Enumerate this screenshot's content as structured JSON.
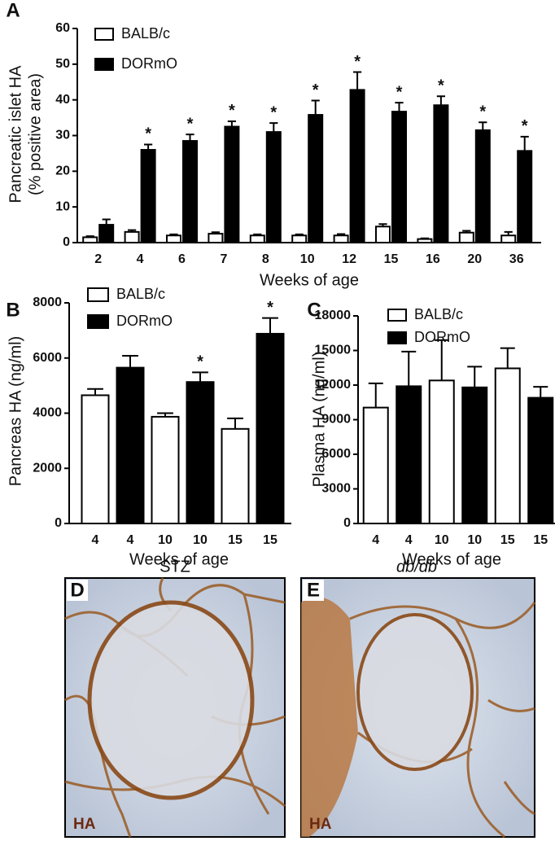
{
  "chart_data": [
    {
      "type": "bar",
      "panel": "A",
      "ylabel": [
        "Pancreatic islet HA",
        "(% positive area)"
      ],
      "xlabel": "Weeks of age",
      "categories": [
        "2",
        "4",
        "6",
        "7",
        "8",
        "10",
        "12",
        "15",
        "16",
        "20",
        "36"
      ],
      "series": [
        {
          "name": "BALB/c",
          "color": "#ffffff",
          "values": [
            1.5,
            3,
            2,
            2.5,
            2,
            2,
            2,
            4.5,
            1,
            2.8,
            2
          ],
          "errors": [
            0.3,
            0.5,
            0.3,
            0.4,
            0.3,
            0.3,
            0.4,
            0.7,
            0.2,
            0.5,
            1
          ]
        },
        {
          "name": "DORmO",
          "color": "#000000",
          "values": [
            5,
            26,
            28.5,
            32.5,
            31,
            35.8,
            42.8,
            36.7,
            38.5,
            31.5,
            25.7
          ],
          "errors": [
            1.5,
            1.5,
            1.8,
            1.5,
            2.5,
            4,
            5,
            2.5,
            2.5,
            2.2,
            4
          ],
          "significance": [
            null,
            "*",
            "*",
            "*",
            "*",
            "*",
            "*",
            "*",
            "*",
            "*",
            "*"
          ]
        }
      ],
      "ylim": [
        0,
        60
      ],
      "yticks": [
        0,
        10,
        20,
        30,
        40,
        50,
        60
      ],
      "grid": false,
      "legend": "upper left"
    },
    {
      "type": "bar",
      "panel": "B",
      "ylabel": [
        "Pancreas HA (ng/ml)"
      ],
      "xlabel": "Weeks of age",
      "categories": [
        "4",
        "4",
        "10",
        "10",
        "15",
        "15"
      ],
      "series": [
        {
          "name": "BALB/c",
          "color": "#ffffff",
          "values": [
            4650,
            null,
            3870,
            null,
            3430,
            null
          ],
          "errors": [
            230,
            null,
            130,
            null,
            380,
            null
          ]
        },
        {
          "name": "DORmO",
          "color": "#000000",
          "values": [
            null,
            5650,
            null,
            5130,
            null,
            6880
          ],
          "errors": [
            null,
            430,
            null,
            350,
            null,
            570
          ],
          "significance": [
            null,
            null,
            null,
            "*",
            null,
            "*"
          ]
        }
      ],
      "ylim": [
        0,
        8000
      ],
      "yticks": [
        0,
        2000,
        4000,
        6000,
        8000
      ],
      "grid": false,
      "legend": "upper left"
    },
    {
      "type": "bar",
      "panel": "C",
      "ylabel": [
        "Plasma HA (ng/ml)"
      ],
      "xlabel": "Weeks of age",
      "categories": [
        "4",
        "4",
        "10",
        "10",
        "15",
        "15"
      ],
      "series": [
        {
          "name": "BALB/c",
          "color": "#ffffff",
          "values": [
            10050,
            null,
            12400,
            null,
            13450,
            null
          ],
          "errors": [
            2100,
            null,
            3500,
            null,
            1750,
            null
          ]
        },
        {
          "name": "DORmO",
          "color": "#000000",
          "values": [
            null,
            11900,
            null,
            11800,
            null,
            10900
          ],
          "errors": [
            null,
            3000,
            null,
            1800,
            null,
            950
          ]
        }
      ],
      "ylim": [
        0,
        18000
      ],
      "yticks": [
        0,
        3000,
        6000,
        9000,
        12000,
        15000,
        18000
      ],
      "grid": false,
      "legend": "upper left"
    }
  ],
  "images": [
    {
      "panel": "D",
      "title": "STZ",
      "stain": "HA"
    },
    {
      "panel": "E",
      "title": "db/db",
      "stain": "HA"
    }
  ]
}
